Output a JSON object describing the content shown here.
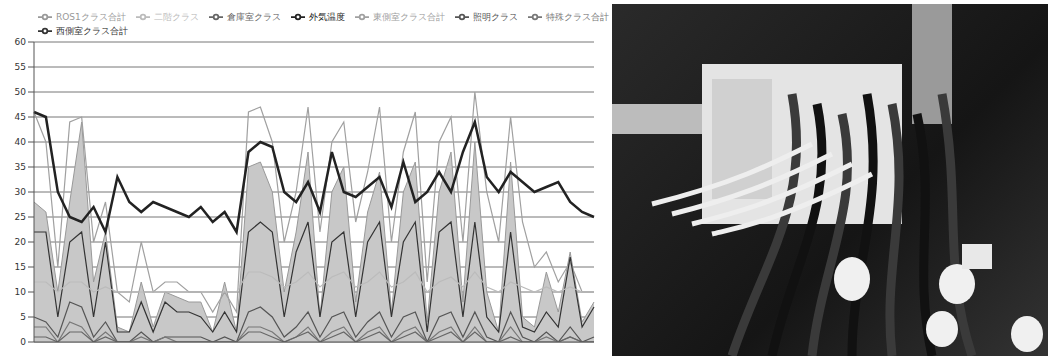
{
  "chart_data": {
    "type": "line",
    "ylim": [
      0,
      60
    ],
    "yticks": [
      0,
      5,
      10,
      15,
      20,
      25,
      30,
      35,
      40,
      45,
      50,
      55,
      60
    ],
    "grid": true,
    "legend": "top",
    "tick_labels": "y",
    "categories": [
      null,
      null,
      null,
      null,
      null,
      null,
      null,
      null,
      null,
      null,
      null,
      null,
      null,
      null,
      null,
      null,
      null,
      null,
      null,
      null,
      null,
      null,
      null,
      null,
      null,
      null,
      null,
      null,
      null,
      null,
      null,
      null,
      null,
      null,
      null,
      null,
      null,
      null,
      null,
      null,
      null,
      null,
      null,
      null,
      null,
      null,
      null,
      null
    ],
    "series": [
      {
        "name": "ROS1クラス合計",
        "type": "area",
        "color": "#c8c8c8",
        "values": [
          28,
          26,
          10,
          28,
          44,
          12,
          22,
          3,
          2,
          12,
          3,
          10,
          9,
          8,
          8,
          2,
          12,
          2,
          35,
          36,
          30,
          10,
          22,
          38,
          5,
          30,
          35,
          8,
          26,
          34,
          6,
          30,
          36,
          4,
          30,
          38,
          8,
          40,
          10,
          2,
          36,
          5,
          3,
          14,
          6,
          18,
          4,
          8
        ]
      },
      {
        "name": "東側室クラス合計",
        "type": "line",
        "color": "#a0a0a0",
        "values": [
          46,
          40,
          15,
          44,
          45,
          20,
          28,
          10,
          8,
          20,
          10,
          12,
          12,
          10,
          10,
          6,
          10,
          6,
          46,
          47,
          40,
          20,
          30,
          47,
          22,
          40,
          44,
          24,
          34,
          47,
          20,
          38,
          46,
          12,
          40,
          45,
          20,
          50,
          30,
          20,
          45,
          24,
          15,
          18,
          12,
          16,
          10,
          10
        ]
      },
      {
        "name": "西側室クラス合計",
        "type": "line",
        "color": "#333333",
        "values": [
          22,
          22,
          5,
          20,
          22,
          5,
          20,
          2,
          2,
          8,
          2,
          8,
          6,
          6,
          5,
          2,
          6,
          2,
          22,
          24,
          22,
          5,
          18,
          24,
          5,
          20,
          22,
          5,
          20,
          24,
          5,
          20,
          24,
          2,
          22,
          24,
          5,
          24,
          5,
          2,
          22,
          3,
          2,
          6,
          3,
          17,
          3,
          7
        ]
      },
      {
        "name": "照明クラス",
        "type": "line",
        "color": "#555555",
        "values": [
          5,
          4,
          1,
          8,
          7,
          1,
          4,
          0,
          0,
          2,
          0,
          1,
          1,
          1,
          1,
          0,
          1,
          0,
          6,
          7,
          5,
          1,
          3,
          6,
          1,
          5,
          6,
          1,
          4,
          6,
          1,
          5,
          6,
          0,
          5,
          6,
          1,
          6,
          1,
          0,
          6,
          1,
          0,
          2,
          0,
          3,
          0,
          1
        ]
      },
      {
        "name": "特殊クラス合計",
        "type": "line",
        "color": "#777777",
        "values": [
          3,
          3,
          0,
          4,
          3,
          0,
          2,
          0,
          0,
          1,
          0,
          1,
          0,
          0,
          0,
          0,
          0,
          0,
          3,
          3,
          2,
          0,
          1,
          3,
          0,
          2,
          3,
          0,
          2,
          3,
          0,
          2,
          3,
          0,
          2,
          3,
          0,
          3,
          0,
          0,
          3,
          0,
          0,
          1,
          0,
          1,
          0,
          0
        ]
      },
      {
        "name": "二階クラス",
        "type": "line",
        "color": "#bbbbbb",
        "values": [
          12,
          12,
          10,
          12,
          12,
          10,
          11,
          10,
          10,
          10,
          10,
          10,
          10,
          10,
          10,
          10,
          10,
          10,
          14,
          14,
          13,
          11,
          12,
          14,
          11,
          13,
          14,
          11,
          12,
          14,
          11,
          12,
          14,
          10,
          12,
          13,
          11,
          14,
          11,
          10,
          12,
          11,
          10,
          11,
          10,
          11,
          10,
          10
        ]
      },
      {
        "name": "倉庫室クラス",
        "type": "line",
        "color": "#666666",
        "values": [
          1,
          1,
          0,
          2,
          2,
          0,
          1,
          0,
          0,
          0,
          0,
          0,
          0,
          0,
          0,
          0,
          0,
          0,
          2,
          2,
          1,
          0,
          1,
          2,
          0,
          1,
          2,
          0,
          1,
          2,
          0,
          1,
          2,
          0,
          1,
          2,
          0,
          2,
          0,
          0,
          1,
          0,
          0,
          0,
          0,
          1,
          0,
          0
        ]
      },
      {
        "name": "外気温度",
        "type": "line",
        "color": "#222222",
        "values": [
          46,
          45,
          30,
          25,
          24,
          27,
          22,
          33,
          28,
          26,
          28,
          27,
          26,
          25,
          27,
          24,
          26,
          22,
          38,
          40,
          39,
          30,
          28,
          32,
          26,
          38,
          30,
          29,
          31,
          33,
          27,
          36,
          28,
          30,
          34,
          30,
          38,
          44,
          33,
          30,
          34,
          32,
          30,
          31,
          32,
          28,
          26,
          25
        ]
      }
    ]
  }
}
